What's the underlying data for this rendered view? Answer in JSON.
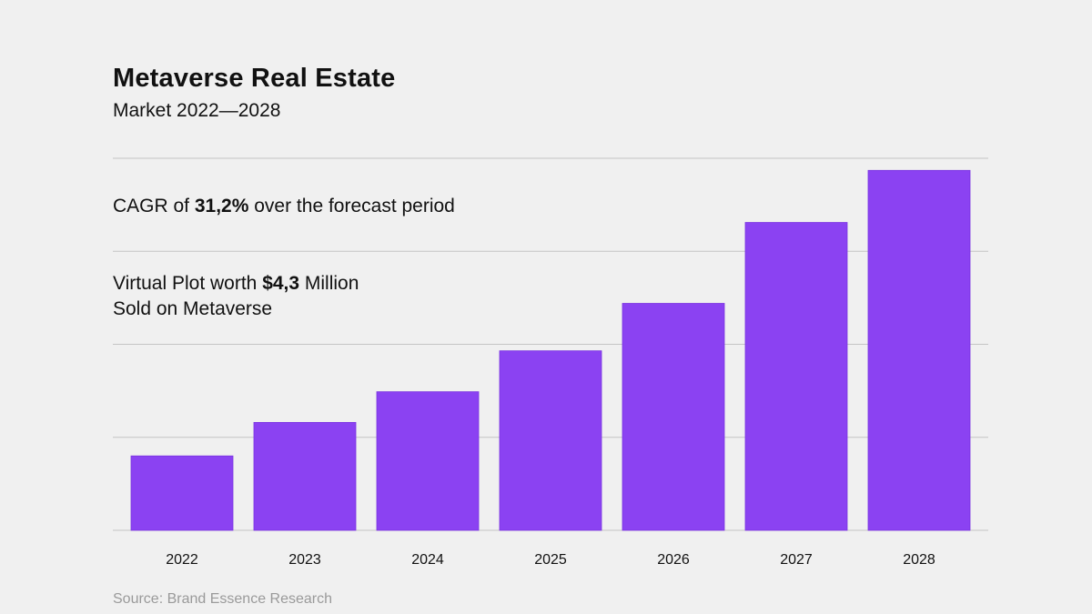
{
  "title": "Metaverse Real Estate",
  "subtitle": "Market 2022—2028",
  "annotations": [
    {
      "pre": "CAGR of ",
      "bold": "31,2%",
      "post": " over the forecast period"
    },
    {
      "pre": "Virtual Plot worth ",
      "bold": "$4,3",
      "post": " Million",
      "line2": "Sold on Metaverse"
    }
  ],
  "source": "Source: Brand Essence Research",
  "colors": {
    "bar": "#8b42f2",
    "grid": "#c4c4c4",
    "background": "#f0f0f0"
  },
  "chart_data": {
    "type": "bar",
    "title": "Metaverse Real Estate",
    "subtitle": "Market 2022—2028",
    "categories": [
      "2022",
      "2023",
      "2024",
      "2025",
      "2026",
      "2027",
      "2028"
    ],
    "values": [
      0.8,
      1.16,
      1.49,
      1.93,
      2.44,
      3.31,
      3.87
    ],
    "ylim": [
      0,
      4
    ],
    "y_axis_labels_shown": false,
    "grid": true,
    "xlabel": "",
    "ylabel": ""
  }
}
